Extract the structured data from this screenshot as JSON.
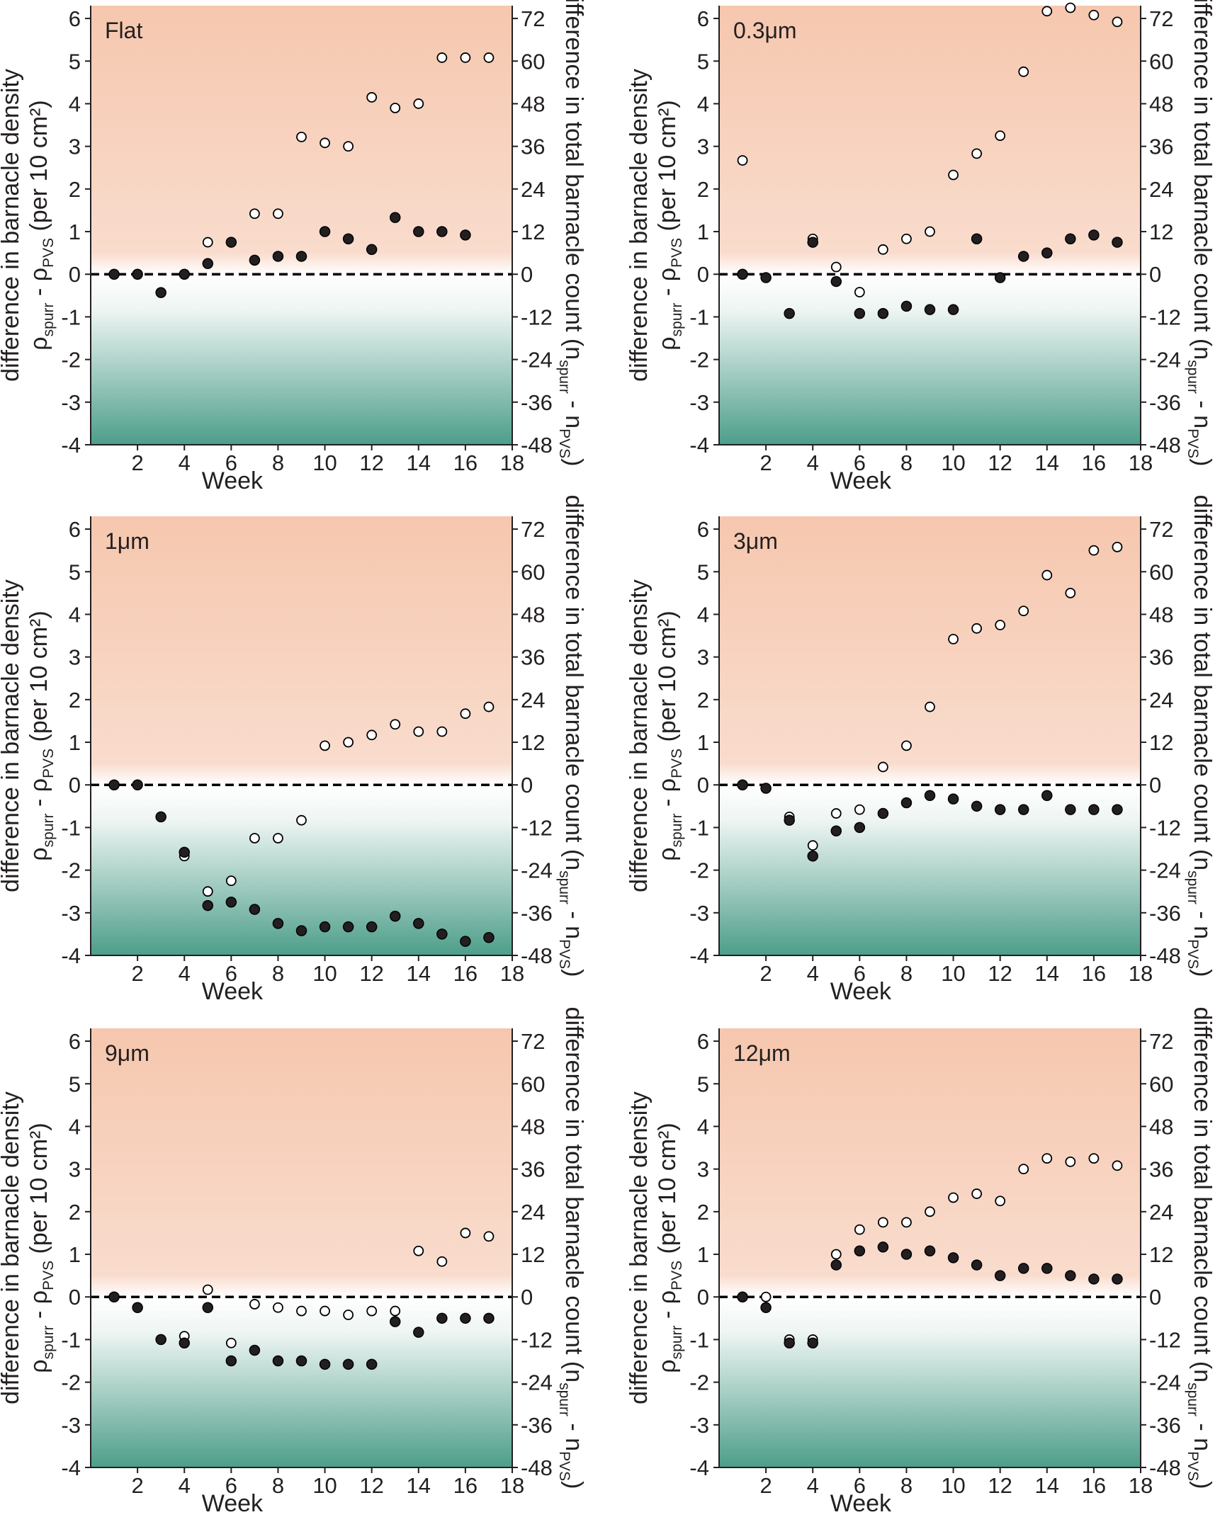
{
  "chart_data": {
    "type": "scatter",
    "layout": "3x2 grid",
    "shared": {
      "xlabel": "Week",
      "ylabel_left_line1": "difference in barnacle density",
      "ylabel_left_line2": {
        "a": "ρ",
        "b": "spurr",
        "c": " - ρ",
        "d": "PVS",
        "e": " (per 10 cm²)"
      },
      "ylabel_right": {
        "a": "difference in total barnacle count (n",
        "b": "spurr",
        "c": " - n",
        "d": "PVS",
        "e": ")"
      },
      "xlim": [
        0,
        18
      ],
      "ylim_left": [
        -4,
        6.3
      ],
      "ylim_right": [
        -48,
        75.6
      ],
      "xticks": [
        2,
        4,
        6,
        8,
        10,
        12,
        14,
        16,
        18
      ],
      "yticks_left": [
        6,
        5,
        4,
        3,
        2,
        1,
        0,
        -1,
        -2,
        -3,
        -4
      ],
      "yticks_right": [
        72,
        60,
        48,
        36,
        24,
        12,
        0,
        -12,
        -24,
        -36,
        -48
      ],
      "background": {
        "above_zero": "#f6c7ae",
        "zero_band": "#ffffff",
        "below_zero": "#4d9e8a"
      },
      "zero_line": "dashed",
      "series": [
        {
          "name": "density difference (open circles)",
          "marker": "open"
        },
        {
          "name": "total count difference (filled circles)",
          "marker": "filled"
        }
      ]
    },
    "panels": [
      {
        "label": "Flat",
        "open": [
          [
            1,
            0
          ],
          [
            2,
            0
          ],
          [
            3,
            -0.43
          ],
          [
            4,
            0
          ],
          [
            5,
            0.75
          ],
          [
            6,
            0.75
          ],
          [
            7,
            1.42
          ],
          [
            8,
            1.42
          ],
          [
            9,
            3.22
          ],
          [
            10,
            3.08
          ],
          [
            11,
            3.0
          ],
          [
            12,
            4.15
          ],
          [
            13,
            3.9
          ],
          [
            14,
            4.0
          ],
          [
            15,
            5.08
          ],
          [
            16,
            5.08
          ],
          [
            17,
            5.08
          ]
        ],
        "filled": [
          [
            1,
            0
          ],
          [
            2,
            0
          ],
          [
            3,
            -0.43
          ],
          [
            4,
            0
          ],
          [
            5,
            0.25
          ],
          [
            6,
            0.75
          ],
          [
            7,
            0.33
          ],
          [
            8,
            0.42
          ],
          [
            9,
            0.42
          ],
          [
            10,
            1.0
          ],
          [
            11,
            0.83
          ],
          [
            12,
            0.58
          ],
          [
            13,
            1.33
          ],
          [
            14,
            1.0
          ],
          [
            15,
            1.0
          ],
          [
            16,
            0.92
          ]
        ]
      },
      {
        "label": "0.3μm",
        "open": [
          [
            1,
            2.67
          ],
          [
            2,
            -0.08
          ],
          [
            3,
            -0.92
          ],
          [
            4,
            0.83
          ],
          [
            5,
            0.17
          ],
          [
            6,
            -0.42
          ],
          [
            7,
            0.58
          ],
          [
            8,
            0.83
          ],
          [
            9,
            1.0
          ],
          [
            10,
            2.33
          ],
          [
            11,
            2.83
          ],
          [
            12,
            3.25
          ],
          [
            13,
            4.75
          ],
          [
            14,
            6.17
          ],
          [
            15,
            6.25
          ],
          [
            16,
            6.08
          ],
          [
            17,
            5.92
          ]
        ],
        "filled": [
          [
            1,
            0
          ],
          [
            2,
            -0.08
          ],
          [
            3,
            -0.92
          ],
          [
            4,
            0.75
          ],
          [
            5,
            -0.17
          ],
          [
            6,
            -0.92
          ],
          [
            7,
            -0.92
          ],
          [
            8,
            -0.75
          ],
          [
            9,
            -0.83
          ],
          [
            10,
            -0.83
          ],
          [
            11,
            0.83
          ],
          [
            12,
            -0.08
          ],
          [
            13,
            0.42
          ],
          [
            14,
            0.5
          ],
          [
            15,
            0.83
          ],
          [
            16,
            0.92
          ],
          [
            17,
            0.75
          ]
        ]
      },
      {
        "label": "1μm",
        "open": [
          [
            1,
            0
          ],
          [
            2,
            0
          ],
          [
            3,
            -0.75
          ],
          [
            4,
            -1.67
          ],
          [
            5,
            -2.5
          ],
          [
            6,
            -2.25
          ],
          [
            7,
            -1.25
          ],
          [
            8,
            -1.25
          ],
          [
            9,
            -0.83
          ],
          [
            10,
            0.92
          ],
          [
            11,
            1.0
          ],
          [
            12,
            1.17
          ],
          [
            13,
            1.42
          ],
          [
            14,
            1.25
          ],
          [
            15,
            1.25
          ],
          [
            16,
            1.67
          ],
          [
            17,
            1.83
          ]
        ],
        "filled": [
          [
            1,
            0
          ],
          [
            2,
            0
          ],
          [
            3,
            -0.75
          ],
          [
            4,
            -1.58
          ],
          [
            5,
            -2.83
          ],
          [
            6,
            -2.75
          ],
          [
            7,
            -2.92
          ],
          [
            8,
            -3.25
          ],
          [
            9,
            -3.42
          ],
          [
            10,
            -3.33
          ],
          [
            11,
            -3.33
          ],
          [
            12,
            -3.33
          ],
          [
            13,
            -3.08
          ],
          [
            14,
            -3.25
          ],
          [
            15,
            -3.5
          ],
          [
            16,
            -3.67
          ],
          [
            17,
            -3.58
          ]
        ]
      },
      {
        "label": "3μm",
        "open": [
          [
            1,
            0
          ],
          [
            2,
            -0.08
          ],
          [
            3,
            -0.75
          ],
          [
            4,
            -1.42
          ],
          [
            5,
            -0.67
          ],
          [
            6,
            -0.58
          ],
          [
            7,
            0.42
          ],
          [
            8,
            0.92
          ],
          [
            9,
            1.83
          ],
          [
            10,
            3.42
          ],
          [
            11,
            3.67
          ],
          [
            12,
            3.75
          ],
          [
            13,
            4.08
          ],
          [
            14,
            4.92
          ],
          [
            15,
            4.5
          ],
          [
            16,
            5.5
          ],
          [
            17,
            5.58
          ]
        ],
        "filled": [
          [
            1,
            0
          ],
          [
            2,
            -0.08
          ],
          [
            3,
            -0.83
          ],
          [
            4,
            -1.67
          ],
          [
            5,
            -1.08
          ],
          [
            6,
            -1.0
          ],
          [
            7,
            -0.67
          ],
          [
            8,
            -0.42
          ],
          [
            9,
            -0.25
          ],
          [
            10,
            -0.33
          ],
          [
            11,
            -0.5
          ],
          [
            12,
            -0.58
          ],
          [
            13,
            -0.58
          ],
          [
            14,
            -0.25
          ],
          [
            15,
            -0.58
          ],
          [
            16,
            -0.58
          ],
          [
            17,
            -0.58
          ]
        ]
      },
      {
        "label": "9μm",
        "open": [
          [
            1,
            0
          ],
          [
            2,
            -0.25
          ],
          [
            3,
            -1.0
          ],
          [
            4,
            -0.92
          ],
          [
            5,
            0.17
          ],
          [
            6,
            -1.08
          ],
          [
            7,
            -0.17
          ],
          [
            8,
            -0.25
          ],
          [
            9,
            -0.33
          ],
          [
            10,
            -0.33
          ],
          [
            11,
            -0.42
          ],
          [
            12,
            -0.33
          ],
          [
            13,
            -0.33
          ],
          [
            14,
            1.08
          ],
          [
            15,
            0.83
          ],
          [
            16,
            1.5
          ],
          [
            17,
            1.42
          ]
        ],
        "filled": [
          [
            1,
            0
          ],
          [
            2,
            -0.25
          ],
          [
            3,
            -1.0
          ],
          [
            4,
            -1.08
          ],
          [
            5,
            -0.25
          ],
          [
            6,
            -1.5
          ],
          [
            7,
            -1.25
          ],
          [
            8,
            -1.5
          ],
          [
            9,
            -1.5
          ],
          [
            10,
            -1.58
          ],
          [
            11,
            -1.58
          ],
          [
            12,
            -1.58
          ],
          [
            13,
            -0.58
          ],
          [
            14,
            -0.83
          ],
          [
            15,
            -0.5
          ],
          [
            16,
            -0.5
          ],
          [
            17,
            -0.5
          ]
        ]
      },
      {
        "label": "12μm",
        "open": [
          [
            1,
            0
          ],
          [
            2,
            0
          ],
          [
            3,
            -1.0
          ],
          [
            4,
            -1.0
          ],
          [
            5,
            1.0
          ],
          [
            6,
            1.58
          ],
          [
            7,
            1.75
          ],
          [
            8,
            1.75
          ],
          [
            9,
            2.0
          ],
          [
            10,
            2.33
          ],
          [
            11,
            2.42
          ],
          [
            12,
            2.25
          ],
          [
            13,
            3.0
          ],
          [
            14,
            3.25
          ],
          [
            15,
            3.17
          ],
          [
            16,
            3.25
          ],
          [
            17,
            3.08
          ]
        ],
        "filled": [
          [
            1,
            0
          ],
          [
            2,
            -0.25
          ],
          [
            3,
            -1.08
          ],
          [
            4,
            -1.08
          ],
          [
            5,
            0.75
          ],
          [
            6,
            1.08
          ],
          [
            7,
            1.17
          ],
          [
            8,
            1.0
          ],
          [
            9,
            1.08
          ],
          [
            10,
            0.92
          ],
          [
            11,
            0.75
          ],
          [
            12,
            0.5
          ],
          [
            13,
            0.67
          ],
          [
            14,
            0.67
          ],
          [
            15,
            0.5
          ],
          [
            16,
            0.42
          ],
          [
            17,
            0.42
          ]
        ]
      }
    ]
  }
}
